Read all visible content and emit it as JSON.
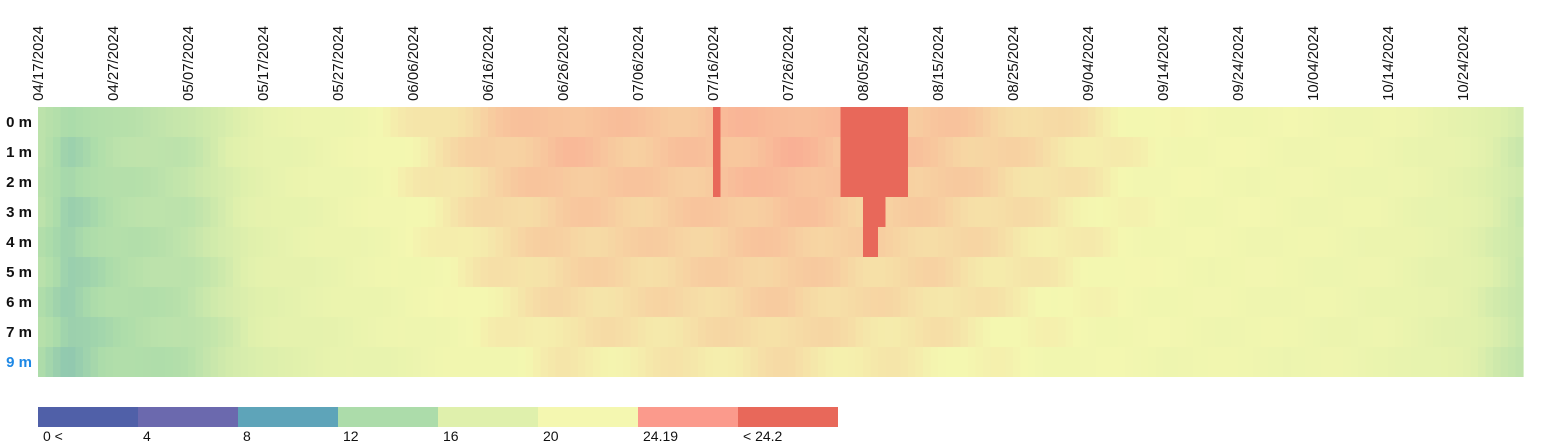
{
  "chart_data": {
    "type": "heatmap",
    "x_labels": [
      "04/17/2024",
      "04/27/2024",
      "05/07/2024",
      "05/17/2024",
      "05/27/2024",
      "06/06/2024",
      "06/16/2024",
      "06/26/2024",
      "07/06/2024",
      "07/16/2024",
      "07/26/2024",
      "08/05/2024",
      "08/15/2024",
      "08/25/2024",
      "09/04/2024",
      "09/14/2024",
      "09/24/2024",
      "10/04/2024",
      "10/14/2024",
      "10/24/2024"
    ],
    "x_range": [
      "04/17/2024",
      "11/01/2024"
    ],
    "rows": [
      "0 m",
      "1 m",
      "2 m",
      "3 m",
      "4 m",
      "5 m",
      "6 m",
      "7 m",
      "9 m"
    ],
    "selected_row": "9 m",
    "legend": {
      "labels": [
        "0 <",
        "4",
        "8",
        "12",
        "16",
        "20",
        "24.19",
        "< 24.2"
      ],
      "colors": [
        "#5060a8",
        "#6b69ae",
        "#5ea4b9",
        "#acdcaa",
        "#dff0ac",
        "#f4f7b0",
        "#fb9a8c",
        "#e8685a"
      ]
    },
    "profile_dates": [
      "04/17/2024",
      "04/21/2024",
      "04/27/2024",
      "05/07/2024",
      "05/17/2024",
      "05/27/2024",
      "06/06/2024",
      "06/16/2024",
      "06/26/2024",
      "07/06/2024",
      "07/16/2024",
      "07/26/2024",
      "08/05/2024",
      "08/15/2024",
      "08/25/2024",
      "09/04/2024",
      "09/14/2024",
      "09/24/2024",
      "10/04/2024",
      "10/14/2024",
      "10/24/2024",
      "11/01/2024"
    ],
    "temperature_by_depth": {
      "0 m": [
        13.5,
        11.5,
        13.0,
        13.8,
        17.5,
        19.0,
        20.5,
        21.8,
        22.6,
        22.2,
        22.4,
        23.0,
        22.3,
        22.2,
        21.5,
        20.8,
        19.8,
        19.6,
        19.3,
        19.0,
        17.5,
        14.5
      ],
      "1 m": [
        13.4,
        11.4,
        12.9,
        13.7,
        17.4,
        18.9,
        20.4,
        21.7,
        22.5,
        22.1,
        22.3,
        22.9,
        22.2,
        22.1,
        21.4,
        20.7,
        19.8,
        19.6,
        19.3,
        18.9,
        17.4,
        14.4
      ],
      "2 m": [
        13.3,
        11.3,
        12.8,
        13.6,
        17.3,
        18.8,
        20.3,
        21.5,
        22.3,
        22.0,
        22.2,
        22.8,
        22.1,
        22.0,
        21.3,
        20.6,
        19.7,
        19.5,
        19.2,
        18.8,
        17.3,
        14.3
      ],
      "3 m": [
        13.2,
        11.2,
        12.6,
        13.5,
        17.1,
        18.6,
        20.1,
        21.2,
        21.9,
        21.8,
        22.0,
        22.3,
        21.8,
        21.7,
        21.1,
        20.4,
        19.7,
        19.5,
        19.2,
        18.8,
        17.2,
        14.2
      ],
      "4 m": [
        13.0,
        11.1,
        12.5,
        13.4,
        17.0,
        18.4,
        19.8,
        21.0,
        21.7,
        21.6,
        21.8,
        22.1,
        21.6,
        21.5,
        20.9,
        20.3,
        19.6,
        19.4,
        19.1,
        18.7,
        17.1,
        14.1
      ],
      "5 m": [
        12.9,
        11.0,
        12.4,
        13.3,
        16.8,
        18.2,
        19.5,
        20.7,
        21.5,
        21.4,
        21.6,
        21.9,
        21.4,
        21.3,
        20.7,
        20.2,
        19.6,
        19.4,
        19.1,
        18.6,
        17.0,
        14.0
      ],
      "6 m": [
        12.8,
        11.0,
        12.3,
        13.2,
        16.6,
        18.0,
        19.2,
        20.4,
        21.2,
        21.2,
        21.4,
        21.7,
        21.2,
        21.1,
        20.5,
        20.0,
        19.5,
        19.3,
        19.0,
        18.5,
        16.9,
        13.9
      ],
      "7 m": [
        12.7,
        10.9,
        12.2,
        13.1,
        16.4,
        17.8,
        18.9,
        20.1,
        20.9,
        20.9,
        21.1,
        21.4,
        20.9,
        20.8,
        20.2,
        19.8,
        19.4,
        19.2,
        18.9,
        18.4,
        16.8,
        13.8
      ],
      "9 m": [
        12.5,
        10.8,
        12.0,
        12.9,
        16.0,
        17.4,
        18.5,
        19.6,
        20.5,
        20.5,
        20.7,
        21.0,
        20.5,
        20.4,
        19.9,
        19.6,
        19.3,
        19.1,
        18.8,
        18.3,
        16.7,
        13.7
      ]
    },
    "threshold_exceedance": [
      {
        "start": "07/16/2024",
        "end": "07/17/2024",
        "depths": [
          "0 m",
          "1 m",
          "2 m"
        ]
      },
      {
        "start": "08/02/2024",
        "end": "08/11/2024",
        "depths": [
          "0 m",
          "1 m",
          "2 m"
        ]
      },
      {
        "start": "08/05/2024",
        "end": "08/08/2024",
        "depths": [
          "3 m"
        ]
      },
      {
        "start": "08/05/2024",
        "end": "08/07/2024",
        "depths": [
          "4 m"
        ]
      }
    ]
  }
}
